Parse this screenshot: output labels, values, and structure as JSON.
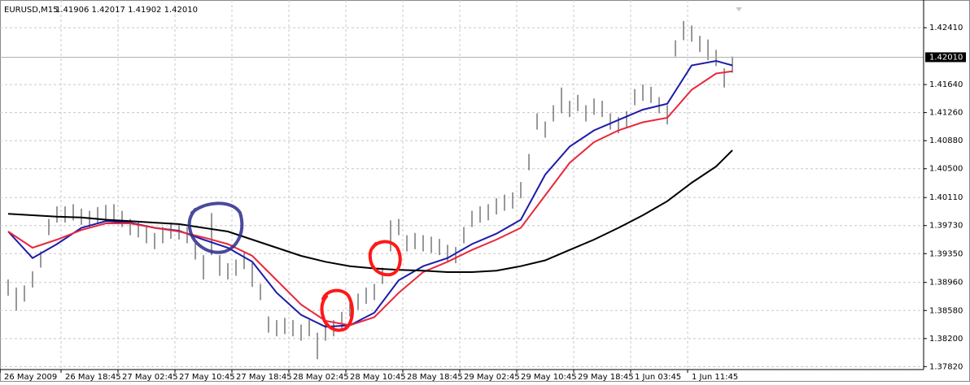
{
  "chart_data": {
    "type": "bars",
    "title": "EURUSD,M15",
    "subtitle": "1.41906 1.42017 1.41902 1.42010",
    "ylim": [
      1.3778,
      1.4273
    ],
    "yticks": [
      {
        "value": 1.4241,
        "label": "1.42410"
      },
      {
        "value": 1.4164,
        "label": "1.41640"
      },
      {
        "value": 1.4126,
        "label": "1.41260"
      },
      {
        "value": 1.4088,
        "label": "1.40880"
      },
      {
        "value": 1.405,
        "label": "1.40500"
      },
      {
        "value": 1.4011,
        "label": "1.40110"
      },
      {
        "value": 1.3973,
        "label": "1.39730"
      },
      {
        "value": 1.3935,
        "label": "1.39350"
      },
      {
        "value": 1.3896,
        "label": "1.38960"
      },
      {
        "value": 1.3858,
        "label": "1.38580"
      },
      {
        "value": 1.382,
        "label": "1.38200"
      },
      {
        "value": 1.3782,
        "label": "1.37820"
      }
    ],
    "xlim": [
      -1,
      112.5
    ],
    "xticks": [
      {
        "value": -1,
        "label": "26 May 2009"
      },
      {
        "value": 6.5,
        "label": "26 May 18:45"
      },
      {
        "value": 13.5,
        "label": "27 May 02:45"
      },
      {
        "value": 20.5,
        "label": "27 May 10:45"
      },
      {
        "value": 27.5,
        "label": "27 May 18:45"
      },
      {
        "value": 34.5,
        "label": "28 May 02:45"
      },
      {
        "value": 41.5,
        "label": "28 May 10:45"
      },
      {
        "value": 48.5,
        "label": "28 May 18:45"
      },
      {
        "value": 55.5,
        "label": "29 May 02:45"
      },
      {
        "value": 62.5,
        "label": "29 May 10:45"
      },
      {
        "value": 69.5,
        "label": "29 May 18:45"
      },
      {
        "value": 76.5,
        "label": "1 Jun 03:45"
      },
      {
        "value": 83.5,
        "label": "1 Jun 11:45"
      }
    ],
    "grid": true,
    "price_line": {
      "value": 1.4201,
      "label": "1.42010"
    },
    "bars": {
      "color": "#555555",
      "high": [
        1.39,
        1.3889,
        1.3892,
        1.3911,
        1.3938,
        1.3982,
        1.3999,
        1.3999,
        1.4002,
        1.3996,
        1.3993,
        1.3998,
        1.4001,
        1.4002,
        1.3993,
        1.3982,
        1.3979,
        1.3971,
        1.3963,
        1.3971,
        1.3977,
        1.3976,
        1.3971,
        1.3949,
        1.3933,
        1.399,
        1.3933,
        1.3922,
        1.3927,
        1.3936,
        1.3922,
        1.3894,
        1.385,
        1.3845,
        1.3848,
        1.3845,
        1.3839,
        1.3845,
        1.3828,
        1.3839,
        1.3845,
        1.3856,
        1.3872,
        1.3881,
        1.3889,
        1.3894,
        1.3916,
        1.398,
        1.3982,
        1.396,
        1.3963,
        1.396,
        1.3958,
        1.3955,
        1.3947,
        1.3944,
        1.3971,
        1.3993,
        1.3999,
        1.4002,
        1.401,
        1.4015,
        1.4018,
        1.4032,
        1.407,
        1.4125,
        1.4114,
        1.4136,
        1.416,
        1.4142,
        1.415,
        1.4136,
        1.4145,
        1.4142,
        1.4125,
        1.412,
        1.4128,
        1.4158,
        1.4164,
        1.4161,
        1.4147,
        1.4136,
        1.4224,
        1.425,
        1.4244,
        1.423,
        1.4225,
        1.4211,
        1.4186,
        1.4202
      ],
      "low": [
        1.3878,
        1.3858,
        1.387,
        1.3889,
        1.3916,
        1.396,
        1.3977,
        1.3977,
        1.398,
        1.3974,
        1.3971,
        1.3976,
        1.3979,
        1.398,
        1.3971,
        1.396,
        1.3957,
        1.3949,
        1.3941,
        1.3949,
        1.3955,
        1.3954,
        1.3949,
        1.3927,
        1.39,
        1.3933,
        1.3905,
        1.39,
        1.3905,
        1.3914,
        1.389,
        1.3872,
        1.3828,
        1.3823,
        1.3826,
        1.3823,
        1.3817,
        1.3823,
        1.3792,
        1.3817,
        1.3823,
        1.3834,
        1.385,
        1.3859,
        1.3867,
        1.3872,
        1.3894,
        1.3938,
        1.396,
        1.3938,
        1.3941,
        1.3938,
        1.3936,
        1.3933,
        1.3925,
        1.3922,
        1.3949,
        1.3971,
        1.3977,
        1.398,
        1.3988,
        1.3993,
        1.3996,
        1.401,
        1.4048,
        1.4103,
        1.4092,
        1.4114,
        1.4125,
        1.412,
        1.4128,
        1.4114,
        1.4123,
        1.412,
        1.4103,
        1.4098,
        1.4106,
        1.4136,
        1.4142,
        1.4139,
        1.4125,
        1.411,
        1.4202,
        1.4224,
        1.4222,
        1.4208,
        1.4197,
        1.4189,
        1.416,
        1.418
      ]
    },
    "series": [
      {
        "color": "#1c1caa",
        "x": [
          0,
          3,
          6,
          9,
          12,
          15,
          18,
          21,
          24,
          27,
          30,
          33,
          36,
          39,
          42,
          45,
          48,
          51,
          54,
          57,
          60,
          63,
          66,
          69,
          72,
          75,
          78,
          81,
          84,
          87,
          89
        ],
        "values": [
          1.3965,
          1.3929,
          1.3948,
          1.397,
          1.3979,
          1.3977,
          1.397,
          1.3966,
          1.3954,
          1.3943,
          1.3924,
          1.3882,
          1.3852,
          1.3836,
          1.3838,
          1.3855,
          1.3899,
          1.3918,
          1.3929,
          1.3948,
          1.3962,
          1.3981,
          1.4042,
          1.408,
          1.4102,
          1.4116,
          1.413,
          1.4138,
          1.419,
          1.4196,
          1.419
        ]
      },
      {
        "color": "#e8283c",
        "x": [
          0,
          3,
          6,
          9,
          12,
          15,
          18,
          21,
          24,
          27,
          30,
          33,
          36,
          39,
          42,
          45,
          48,
          51,
          54,
          57,
          60,
          63,
          66,
          69,
          72,
          75,
          78,
          81,
          84,
          87,
          89
        ],
        "values": [
          1.3965,
          1.3943,
          1.3954,
          1.3967,
          1.3976,
          1.3976,
          1.397,
          1.3965,
          1.3957,
          1.3948,
          1.3932,
          1.3899,
          1.3866,
          1.3844,
          1.3838,
          1.3849,
          1.3882,
          1.391,
          1.3924,
          1.394,
          1.3954,
          1.397,
          1.4014,
          1.4058,
          1.4086,
          1.4102,
          1.4113,
          1.4119,
          1.4157,
          1.4179,
          1.4182
        ]
      },
      {
        "color": "#000000",
        "x": [
          0,
          3,
          6,
          9,
          12,
          15,
          18,
          21,
          24,
          27,
          30,
          33,
          36,
          39,
          42,
          45,
          48,
          51,
          54,
          57,
          60,
          63,
          66,
          69,
          72,
          75,
          78,
          81,
          84,
          87,
          89
        ],
        "values": [
          1.3989,
          1.3987,
          1.3985,
          1.3984,
          1.3981,
          1.3979,
          1.3977,
          1.3975,
          1.397,
          1.3965,
          1.3954,
          1.3943,
          1.3932,
          1.3924,
          1.3918,
          1.3915,
          1.3913,
          1.3912,
          1.391,
          1.391,
          1.3912,
          1.3918,
          1.3926,
          1.394,
          1.3954,
          1.397,
          1.3987,
          1.4006,
          1.4031,
          1.4053,
          1.4075
        ]
      }
    ]
  }
}
